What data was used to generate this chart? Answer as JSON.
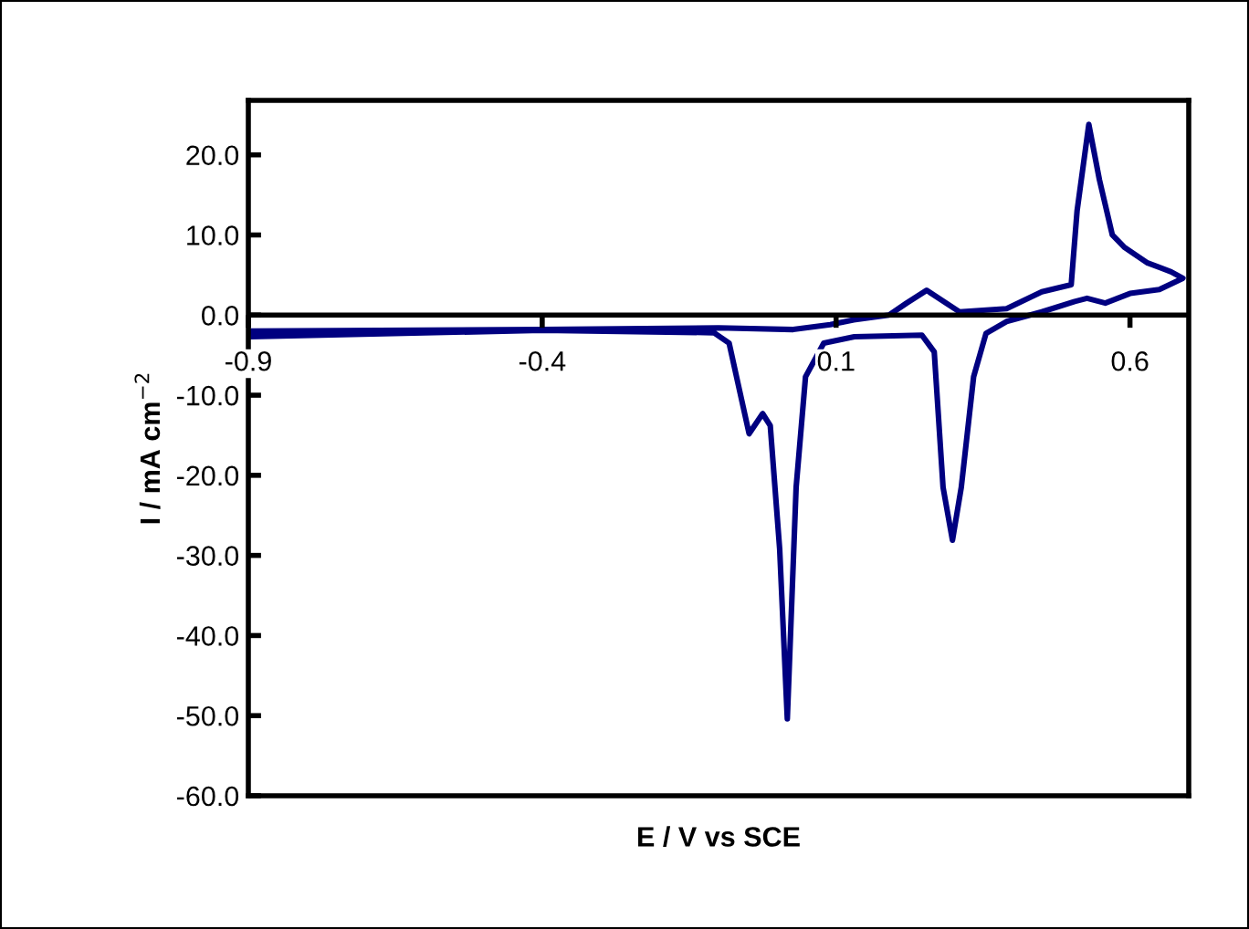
{
  "chart_data": {
    "type": "line",
    "xlabel": "E / V vs SCE",
    "ylabel": "I / mA cm$^{−2}$",
    "x": [
      -0.9,
      -0.4,
      -0.1,
      0.027,
      0.09,
      0.13,
      0.19,
      0.22,
      0.254,
      0.31,
      0.39,
      0.45,
      0.5,
      0.51,
      0.53,
      0.548,
      0.57,
      0.59,
      0.63,
      0.67,
      0.69,
      0.65,
      0.6,
      0.558,
      0.527,
      0.506,
      0.45,
      0.39,
      0.355,
      0.334,
      0.313,
      0.298,
      0.282,
      0.267,
      0.246,
      0.131,
      0.079,
      0.048,
      0.032,
      0.017,
      0.004,
      -0.012,
      -0.025,
      -0.048,
      -0.067,
      -0.082,
      -0.108,
      -0.4,
      -0.892
    ],
    "series": [
      {
        "color": "#000080",
        "values": [
          -2.0,
          -1.8,
          -1.6,
          -1.8,
          -1.2,
          -0.6,
          0.0,
          1.5,
          3.1,
          0.4,
          0.8,
          2.9,
          3.8,
          13.0,
          23.8,
          16.9,
          10.0,
          8.5,
          6.5,
          5.4,
          4.6,
          3.2,
          2.7,
          1.5,
          2.1,
          1.7,
          0.4,
          -0.8,
          -2.3,
          -7.7,
          -21.5,
          -28.1,
          -21.5,
          -4.6,
          -2.5,
          -2.7,
          -3.5,
          -7.7,
          -21.5,
          -50.4,
          -29.2,
          -13.8,
          -12.3,
          -14.8,
          -8.5,
          -3.5,
          -2.2,
          -1.9,
          -2.7
        ]
      }
    ],
    "xlim": [
      -0.9,
      0.7
    ],
    "ylim": [
      -60,
      26.8
    ],
    "xticks": [
      {
        "value": -0.9,
        "label": "-0.9"
      },
      {
        "value": -0.4,
        "label": "-0.4"
      },
      {
        "value": 0.1,
        "label": "0.1"
      },
      {
        "value": 0.6,
        "label": "0.6"
      }
    ],
    "yticks": [
      {
        "value": -60,
        "label": "-60.0"
      },
      {
        "value": -50,
        "label": "-50.0"
      },
      {
        "value": -40,
        "label": "-40.0"
      },
      {
        "value": -30,
        "label": "-30.0"
      },
      {
        "value": -20,
        "label": "-20.0"
      },
      {
        "value": -10,
        "label": "-10.0"
      },
      {
        "value": 0,
        "label": "0.0"
      },
      {
        "value": 10,
        "label": "10.0"
      },
      {
        "value": 20,
        "label": "20.0"
      }
    ],
    "grid": false,
    "legend": false,
    "marker": "none",
    "line_style": "solid"
  }
}
